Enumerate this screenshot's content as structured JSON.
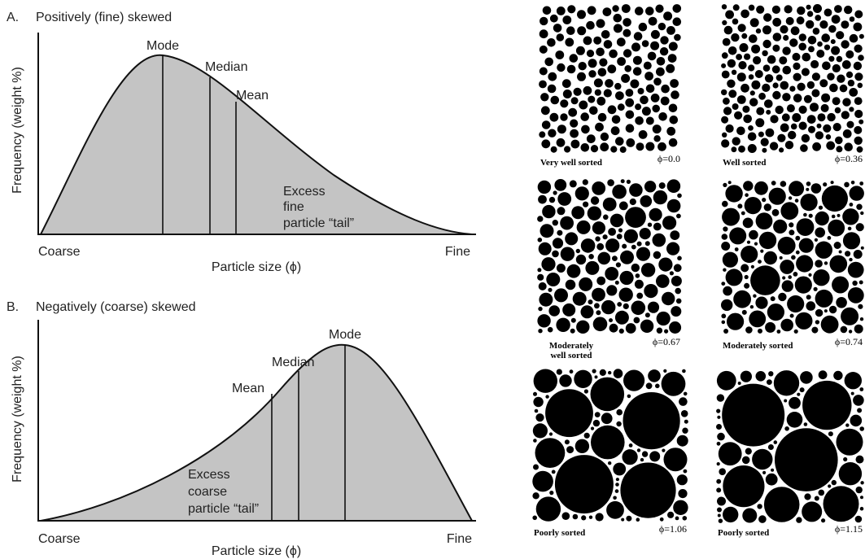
{
  "panel_a": {
    "letter": "A.",
    "title": "Positively (fine) skewed",
    "y_label": "Frequency (weight %)",
    "x_left": "Coarse",
    "x_right": "Fine",
    "x_label": "Particle size (ϕ)",
    "mode": "Mode",
    "median": "Median",
    "mean": "Mean",
    "tail": [
      "Excess",
      "fine",
      "particle “tail”"
    ]
  },
  "panel_b": {
    "letter": "B.",
    "title": "Negatively (coarse) skewed",
    "y_label": "Frequency (weight %)",
    "x_left": "Coarse",
    "x_right": "Fine",
    "x_label": "Particle size (ϕ)",
    "mode": "Mode",
    "median": "Median",
    "mean": "Mean",
    "tail": [
      "Excess",
      "coarse",
      "particle “tail”"
    ]
  },
  "sorting": [
    {
      "label": [
        "Very well sorted"
      ],
      "phi": "ϕ=0.0"
    },
    {
      "label": [
        "Well sorted"
      ],
      "phi": "ϕ=0.36"
    },
    {
      "label": [
        "Moderately",
        "well sorted"
      ],
      "phi": "ϕ=0.67"
    },
    {
      "label": [
        "Moderately sorted"
      ],
      "phi": "ϕ=0.74"
    },
    {
      "label": [
        "Poorly sorted"
      ],
      "phi": "ϕ=1.06"
    },
    {
      "label": [
        "Poorly sorted"
      ],
      "phi": "ϕ=1.15"
    }
  ]
}
